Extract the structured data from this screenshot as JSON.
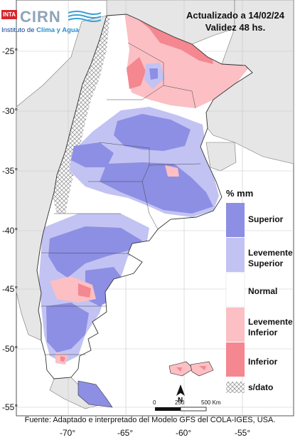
{
  "header": {
    "updated": "Actualizado a 14/02/24",
    "validity": "Validez 48 hs."
  },
  "logo": {
    "inta": "INTA",
    "cirn": "CIRN",
    "subtitle_plain": "Instituto de ",
    "subtitle_accent": "Clima y Agua"
  },
  "legend": {
    "title": "% mm",
    "items": [
      {
        "label_line1": "Superior",
        "label_line2": "",
        "color": "#8c8fe3"
      },
      {
        "label_line1": "Levemente",
        "label_line2": "Superior",
        "color": "#c2c3f3"
      },
      {
        "label_line1": "Normal",
        "label_line2": "",
        "color": "#ffffff"
      },
      {
        "label_line1": "Levemente",
        "label_line2": "Inferior",
        "color": "#fbbfc4"
      },
      {
        "label_line1": "Inferior",
        "label_line2": "",
        "color": "#f4878f"
      }
    ],
    "nodata": {
      "label": "s/dato"
    }
  },
  "axes": {
    "lat_labels": [
      "-25°",
      "-30°",
      "-35°",
      "-40°",
      "-45°",
      "-50°",
      "-55°"
    ],
    "lon_labels": [
      "-70°",
      "-65°",
      "-60°",
      "-55°"
    ]
  },
  "scale_bar": {
    "zero": "0",
    "mid": "250",
    "end": "500 Km"
  },
  "north_arrow": {
    "letter": "N"
  },
  "source": "Fuente: Adaptado e interpretado del Modelo GFS del COLA-IGES, USA.",
  "colors": {
    "superior": "#8c8fe3",
    "lev_superior": "#c2c3f3",
    "normal": "#ffffff",
    "lev_inferior": "#fbbfc4",
    "inferior": "#f4878f",
    "neighbor_land": "#e6e6e6",
    "sea": "#ffffff"
  }
}
